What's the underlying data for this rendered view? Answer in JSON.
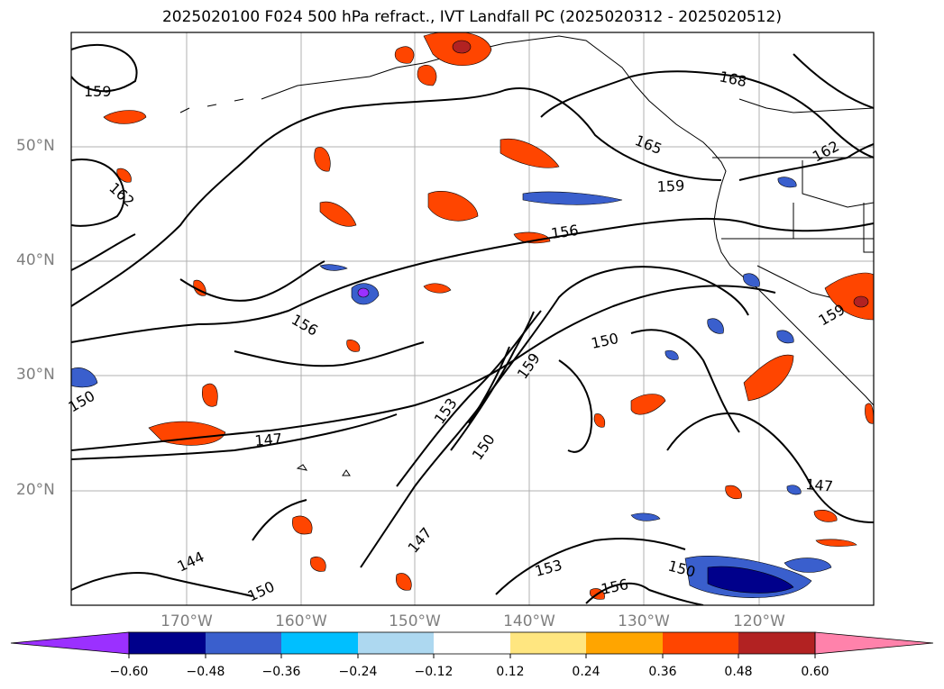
{
  "title": "2025020100 F024 500 hPa refract., IVT Landfall PC (2025020312 - 2025020512)",
  "map": {
    "lat_labels": [
      "50°N",
      "40°N",
      "30°N",
      "20°N"
    ],
    "lon_labels": [
      "170°W",
      "160°W",
      "150°W",
      "140°W",
      "130°W",
      "120°W"
    ],
    "contour_labels": [
      "159",
      "168",
      "165",
      "162",
      "162",
      "159",
      "156",
      "156",
      "150",
      "159",
      "150",
      "153",
      "150",
      "147",
      "147",
      "147",
      "144",
      "150",
      "153",
      "156",
      "150",
      "159"
    ],
    "grid": true,
    "line_color": "#000000"
  },
  "colorbar": {
    "ticks": [
      "−0.60",
      "−0.48",
      "−0.36",
      "−0.24",
      "−0.12",
      "0.12",
      "0.24",
      "0.36",
      "0.48",
      "0.60"
    ],
    "colors": [
      "#9b30ff",
      "#00008b",
      "#3a5fcd",
      "#00bfff",
      "#add8f0",
      "#ffffff",
      "#ffe680",
      "#ffa500",
      "#ff4500",
      "#b22222",
      "#ff82ab"
    ]
  }
}
